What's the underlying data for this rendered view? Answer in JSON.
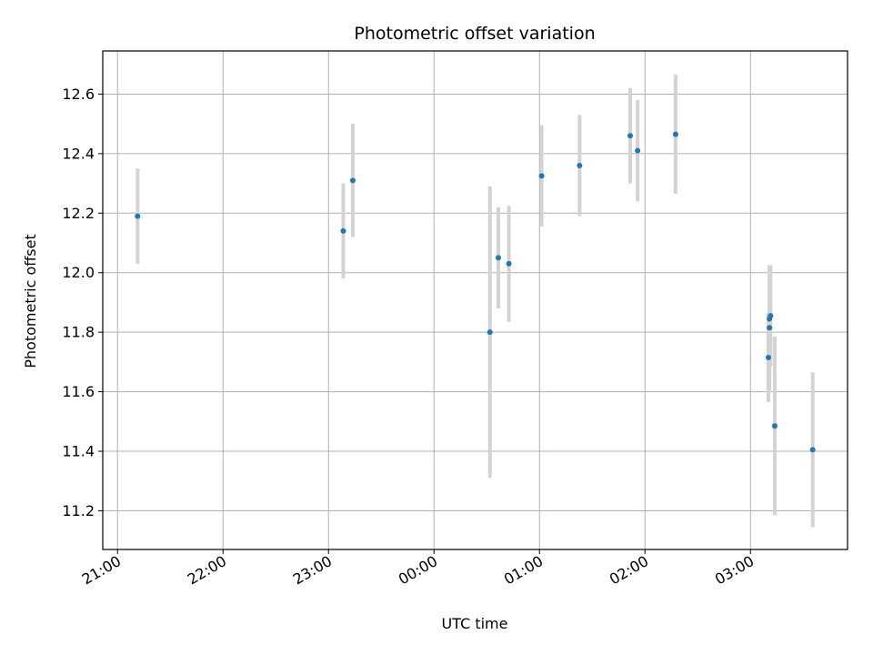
{
  "chart_data": {
    "type": "scatter",
    "title": "Photometric offset variation",
    "xlabel": "UTC time",
    "ylabel": "Photometric offset",
    "x_ticks": [
      {
        "h": 21.0,
        "label": "21:00"
      },
      {
        "h": 22.0,
        "label": "22:00"
      },
      {
        "h": 23.0,
        "label": "23:00"
      },
      {
        "h": 24.0,
        "label": "00:00"
      },
      {
        "h": 25.0,
        "label": "01:00"
      },
      {
        "h": 26.0,
        "label": "02:00"
      },
      {
        "h": 27.0,
        "label": "03:00"
      }
    ],
    "y_ticks": [
      {
        "v": 11.2,
        "label": "11.2"
      },
      {
        "v": 11.4,
        "label": "11.4"
      },
      {
        "v": 11.6,
        "label": "11.6"
      },
      {
        "v": 11.8,
        "label": "11.8"
      },
      {
        "v": 12.0,
        "label": "12.0"
      },
      {
        "v": 12.2,
        "label": "12.2"
      },
      {
        "v": 12.4,
        "label": "12.4"
      },
      {
        "v": 12.6,
        "label": "12.6"
      }
    ],
    "xlim": [
      20.86,
      27.92
    ],
    "ylim": [
      11.07,
      12.745
    ],
    "grid": true,
    "marker_color": "#1f77b4",
    "errorbar_color": "#d3d3d3",
    "points": [
      {
        "t": 21.19,
        "y": 12.19,
        "err": 0.16
      },
      {
        "t": 23.14,
        "y": 12.14,
        "err": 0.16
      },
      {
        "t": 23.23,
        "y": 12.31,
        "err": 0.19
      },
      {
        "t": 24.53,
        "y": 11.8,
        "err": 0.49
      },
      {
        "t": 24.61,
        "y": 12.05,
        "err": 0.17
      },
      {
        "t": 24.71,
        "y": 12.03,
        "err": 0.195
      },
      {
        "t": 25.02,
        "y": 12.325,
        "err": 0.17
      },
      {
        "t": 25.38,
        "y": 12.36,
        "err": 0.17
      },
      {
        "t": 25.86,
        "y": 12.46,
        "err": 0.16
      },
      {
        "t": 25.93,
        "y": 12.41,
        "err": 0.17
      },
      {
        "t": 26.29,
        "y": 12.465,
        "err": 0.2
      },
      {
        "t": 27.17,
        "y": 11.715,
        "err": 0.15
      },
      {
        "t": 27.18,
        "y": 11.815,
        "err": 0.21
      },
      {
        "t": 27.18,
        "y": 11.845,
        "err": 0.18
      },
      {
        "t": 27.19,
        "y": 11.855,
        "err": 0.17
      },
      {
        "t": 27.23,
        "y": 11.485,
        "err": 0.3
      },
      {
        "t": 27.59,
        "y": 11.405,
        "err": 0.26
      }
    ]
  }
}
